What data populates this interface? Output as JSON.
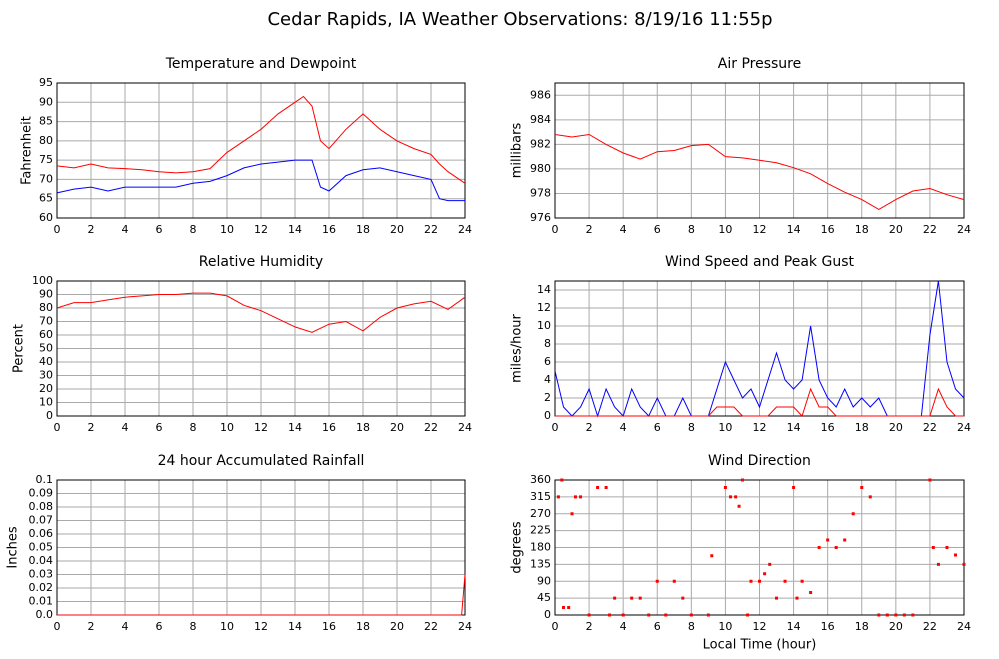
{
  "title": "Cedar Rapids, IA Weather Observations: 8/19/16 11:55p",
  "chart_data": [
    {
      "type": "line",
      "title": "Temperature and Dewpoint",
      "ylabel": "Fahrenheit",
      "x": [
        0,
        1,
        2,
        3,
        4,
        5,
        6,
        7,
        8,
        9,
        10,
        11,
        12,
        13,
        14,
        14.5,
        15,
        15.5,
        16,
        17,
        18,
        19,
        20,
        21,
        22,
        22.5,
        23,
        24
      ],
      "series": [
        {
          "name": "Temperature",
          "color": "#ff0000",
          "values": [
            73.5,
            73,
            74,
            73,
            72.8,
            72.5,
            72,
            71.7,
            72,
            72.8,
            77,
            80,
            83,
            87,
            90,
            91.5,
            89,
            80,
            78,
            83,
            87,
            83,
            80,
            78,
            76.5,
            74,
            72,
            69
          ]
        },
        {
          "name": "Dewpoint",
          "color": "#0000ff",
          "values": [
            66.5,
            67.5,
            68,
            67,
            68,
            68,
            68,
            68,
            69,
            69.5,
            71,
            73,
            74,
            74.5,
            75,
            75,
            75,
            68,
            67,
            71,
            72.5,
            73,
            72,
            71,
            70,
            65,
            64.5,
            64.5
          ]
        }
      ],
      "xlim": [
        0,
        24
      ],
      "xticks": [
        0,
        2,
        4,
        6,
        8,
        10,
        12,
        14,
        16,
        18,
        20,
        22,
        24
      ],
      "ylim": [
        60,
        95
      ],
      "yticks": [
        60,
        65,
        70,
        75,
        80,
        85,
        90,
        95
      ],
      "grid": true
    },
    {
      "type": "line",
      "title": "Air Pressure",
      "ylabel": "millibars",
      "x": [
        0,
        1,
        2,
        3,
        4,
        5,
        6,
        7,
        8,
        9,
        10,
        11,
        12,
        13,
        14,
        15,
        16,
        17,
        18,
        19,
        20,
        21,
        22,
        23,
        24
      ],
      "series": [
        {
          "name": "Pressure",
          "color": "#ff0000",
          "values": [
            982.8,
            982.6,
            982.8,
            982,
            981.3,
            980.8,
            981.4,
            981.5,
            981.9,
            982,
            981,
            980.9,
            980.7,
            980.5,
            980.1,
            979.6,
            978.8,
            978.1,
            977.5,
            976.7,
            977.5,
            978.2,
            978.4,
            977.9,
            977.5
          ]
        }
      ],
      "xlim": [
        0,
        24
      ],
      "xticks": [
        0,
        2,
        4,
        6,
        8,
        10,
        12,
        14,
        16,
        18,
        20,
        22,
        24
      ],
      "ylim": [
        976,
        987
      ],
      "yticks": [
        976,
        978,
        980,
        982,
        984,
        986
      ],
      "grid": true
    },
    {
      "type": "line",
      "title": "Relative Humidity",
      "ylabel": "Percent",
      "x": [
        0,
        1,
        2,
        3,
        4,
        5,
        6,
        7,
        8,
        9,
        10,
        11,
        12,
        13,
        14,
        15,
        16,
        17,
        18,
        19,
        20,
        21,
        22,
        23,
        24
      ],
      "series": [
        {
          "name": "Relative Humidity",
          "color": "#ff0000",
          "values": [
            80,
            84,
            84,
            86,
            88,
            89,
            90,
            90,
            91,
            91,
            89,
            82,
            78,
            72,
            66,
            62,
            68,
            70,
            63,
            73,
            80,
            83,
            85,
            79,
            88
          ]
        }
      ],
      "xlim": [
        0,
        24
      ],
      "xticks": [
        0,
        2,
        4,
        6,
        8,
        10,
        12,
        14,
        16,
        18,
        20,
        22,
        24
      ],
      "ylim": [
        0,
        100
      ],
      "yticks": [
        0,
        10,
        20,
        30,
        40,
        50,
        60,
        70,
        80,
        90,
        100
      ],
      "grid": true
    },
    {
      "type": "line",
      "title": "Wind Speed and Peak Gust",
      "ylabel": "miles/hour",
      "x": [
        0,
        0.5,
        1,
        1.5,
        2,
        2.5,
        3,
        3.5,
        4,
        4.5,
        5,
        5.5,
        6,
        6.5,
        7,
        7.5,
        8,
        8.5,
        9,
        9.5,
        10,
        10.5,
        11,
        11.5,
        12,
        12.5,
        13,
        13.5,
        14,
        14.5,
        15,
        15.5,
        16,
        16.5,
        17,
        17.5,
        18,
        18.5,
        19,
        19.5,
        20,
        20.5,
        21,
        21.5,
        22,
        22.5,
        23,
        23.5,
        24
      ],
      "series": [
        {
          "name": "Wind Speed",
          "color": "#0000ff",
          "values": [
            5,
            1,
            0,
            1,
            3,
            0,
            3,
            1,
            0,
            3,
            1,
            0,
            2,
            0,
            0,
            2,
            0,
            0,
            0,
            3,
            6,
            4,
            2,
            3,
            1,
            4,
            7,
            4,
            3,
            4,
            10,
            4,
            2,
            1,
            3,
            1,
            2,
            1,
            2,
            0,
            0,
            0,
            0,
            0,
            9,
            15,
            6,
            3,
            2
          ]
        },
        {
          "name": "Peak Gust",
          "color": "#ff0000",
          "values": [
            0,
            0,
            0,
            0,
            0,
            0,
            0,
            0,
            0,
            0,
            0,
            0,
            0,
            0,
            0,
            0,
            0,
            0,
            0,
            1,
            1,
            1,
            0,
            0,
            0,
            0,
            1,
            1,
            1,
            0,
            3,
            1,
            1,
            0,
            0,
            0,
            0,
            0,
            0,
            0,
            0,
            0,
            0,
            0,
            0,
            3,
            1,
            0,
            0
          ]
        }
      ],
      "xlim": [
        0,
        24
      ],
      "xticks": [
        0,
        2,
        4,
        6,
        8,
        10,
        12,
        14,
        16,
        18,
        20,
        22,
        24
      ],
      "ylim": [
        0,
        15
      ],
      "yticks": [
        0,
        2,
        4,
        6,
        8,
        10,
        12,
        14
      ],
      "grid": true
    },
    {
      "type": "line",
      "title": "24 hour Accumulated Rainfall",
      "ylabel": "Inches",
      "x": [
        0,
        23.8,
        24
      ],
      "series": [
        {
          "name": "Rainfall",
          "color": "#ff0000",
          "values": [
            0,
            0,
            0.03
          ]
        }
      ],
      "xlim": [
        0,
        24
      ],
      "xticks": [
        0,
        2,
        4,
        6,
        8,
        10,
        12,
        14,
        16,
        18,
        20,
        22,
        24
      ],
      "ylim": [
        0,
        0.1
      ],
      "yticks": [
        {
          "value": 0,
          "label": "0.0"
        },
        0.01,
        0.02,
        0.03,
        0.04,
        0.05,
        0.06,
        0.07,
        0.08,
        0.09,
        0.1
      ],
      "grid": true
    },
    {
      "type": "scatter",
      "title": "Wind Direction",
      "ylabel": "degrees",
      "xlabel": "Local Time (hour)",
      "x": [
        0.2,
        0.4,
        0.5,
        0.8,
        1,
        1.2,
        1.5,
        2,
        2.5,
        3,
        3.2,
        3.5,
        4,
        4.5,
        5,
        5.5,
        6,
        6.5,
        7,
        7.5,
        8,
        9,
        9.2,
        10,
        10.3,
        10.6,
        10.8,
        11,
        11.3,
        11.5,
        12,
        12.3,
        12.6,
        13,
        13.5,
        14,
        14.2,
        14.5,
        15,
        15.5,
        16,
        16.5,
        17,
        17.5,
        18,
        18.5,
        19,
        19.5,
        20,
        20.5,
        21,
        22,
        22.2,
        22.5,
        23,
        23.5,
        24
      ],
      "series": [
        {
          "name": "Wind Direction",
          "color": "#ff0000",
          "values": [
            315,
            360,
            20,
            20,
            270,
            315,
            315,
            0,
            340,
            340,
            0,
            45,
            0,
            45,
            45,
            0,
            90,
            0,
            90,
            45,
            0,
            0,
            158,
            340,
            315,
            315,
            290,
            360,
            0,
            90,
            90,
            110,
            135,
            45,
            90,
            340,
            45,
            90,
            60,
            180,
            200,
            180,
            200,
            270,
            340,
            315,
            0,
            0,
            0,
            0,
            0,
            360,
            180,
            135,
            180,
            160,
            135
          ]
        }
      ],
      "xlim": [
        0,
        24
      ],
      "xticks": [
        0,
        2,
        4,
        6,
        8,
        10,
        12,
        14,
        16,
        18,
        20,
        22,
        24
      ],
      "ylim": [
        0,
        360
      ],
      "yticks": [
        0,
        45,
        90,
        135,
        180,
        225,
        270,
        315,
        360
      ],
      "grid": true
    }
  ]
}
